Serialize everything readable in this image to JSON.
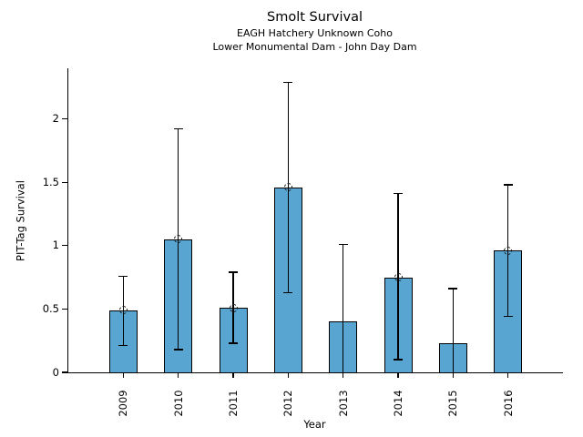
{
  "chart_data": {
    "type": "bar",
    "title": "Smolt Survival",
    "subtitles": [
      "EAGH Hatchery Unknown Coho",
      "Lower Monumental Dam - John Day Dam"
    ],
    "xlabel": "Year",
    "ylabel": "PIT-Tag Survival",
    "categories": [
      "2009",
      "2010",
      "2011",
      "2012",
      "2013",
      "2014",
      "2015",
      "2016"
    ],
    "values": [
      0.49,
      1.05,
      0.51,
      1.46,
      0.4,
      0.75,
      0.23,
      0.96
    ],
    "error_low": [
      0.21,
      0.18,
      0.23,
      0.63,
      0.0,
      0.1,
      0.0,
      0.44
    ],
    "error_high": [
      0.76,
      1.92,
      0.79,
      2.29,
      1.01,
      1.41,
      0.66,
      1.48
    ],
    "point_marker": [
      true,
      true,
      true,
      true,
      false,
      true,
      false,
      true
    ],
    "lower_cap_visible": [
      true,
      true,
      true,
      true,
      false,
      true,
      false,
      true
    ],
    "ylim": [
      0,
      2.4
    ],
    "yticks": [
      0,
      0.5,
      1,
      1.5,
      2
    ],
    "ytick_labels": [
      "0",
      "0.5",
      "1",
      "1.5",
      "2"
    ],
    "grid": false,
    "legend": null,
    "colors": {
      "bar_fill": "#58A5D2",
      "bar_edge": "#000000",
      "error_bar": "#000000",
      "text": "#000000",
      "background": "#FFFFFF"
    }
  }
}
